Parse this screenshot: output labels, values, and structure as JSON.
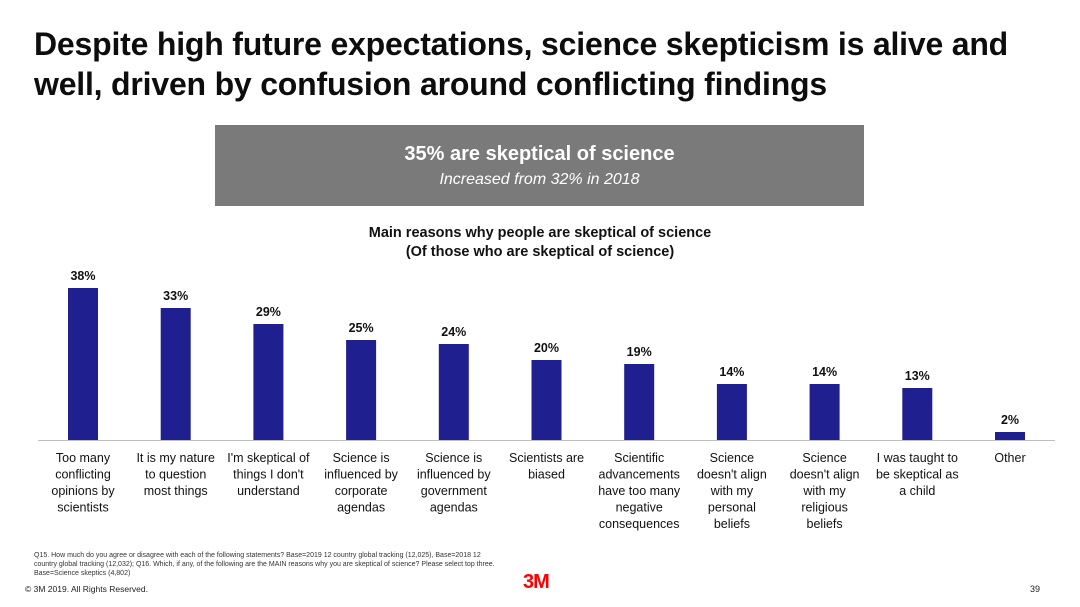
{
  "title": "Despite high future expectations, science skepticism is alive and well, driven by confusion around conflicting findings",
  "banner": {
    "main": "35% are skeptical of science",
    "sub": "Increased from 32% in 2018"
  },
  "chart_data": {
    "type": "bar",
    "title": "Main reasons why people are skeptical of science",
    "subtitle": "(Of those who are skeptical of science)",
    "categories": [
      [
        "Too many",
        "conflicting",
        "opinions by",
        "scientists"
      ],
      [
        "It is my nature",
        "to question",
        "most things"
      ],
      [
        "I'm skeptical of",
        "things I don't",
        "understand"
      ],
      [
        "Science is",
        "influenced by",
        "corporate",
        "agendas"
      ],
      [
        "Science is",
        "influenced by",
        "government",
        "agendas"
      ],
      [
        "Scientists are",
        "biased"
      ],
      [
        "Scientific",
        "advancements",
        "have too many",
        "negative",
        "consequences"
      ],
      [
        "Science",
        "doesn't align",
        "with my",
        "personal",
        "beliefs"
      ],
      [
        "Science",
        "doesn't align",
        "with my",
        "religious",
        "beliefs"
      ],
      [
        "I was taught to",
        "be skeptical as",
        "a child"
      ],
      [
        "Other"
      ]
    ],
    "values": [
      38,
      33,
      29,
      25,
      24,
      20,
      19,
      14,
      14,
      13,
      2
    ],
    "value_labels": [
      "38%",
      "33%",
      "29%",
      "25%",
      "24%",
      "20%",
      "19%",
      "14%",
      "14%",
      "13%",
      "2%"
    ],
    "ylim": [
      0,
      40
    ],
    "xlabel": "",
    "ylabel": "",
    "bar_color": "#1f1f8f",
    "axis_color": "#bfbfbf"
  },
  "footnote": "Q15. How much do you agree or disagree with each of the following statements? Base=2019 12 country global tracking (12,025), Base=2018 12 country global tracking (12,032); Q16. Which, if any, of the following are the MAIN reasons why you are skeptical of science? Please select top three. Base=Science skeptics (4,802)",
  "copyright": "© 3M 2019.   All Rights Reserved.",
  "logo": "3M",
  "page_number": "39"
}
